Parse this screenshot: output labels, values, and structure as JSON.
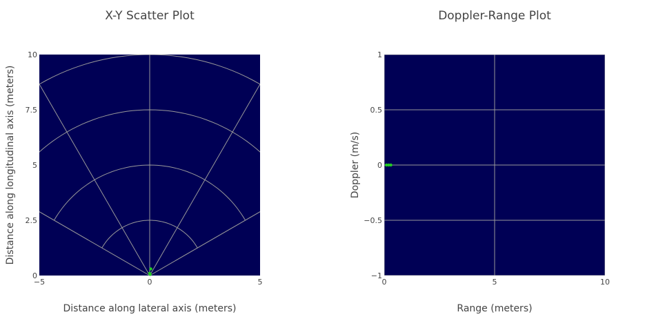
{
  "chart_data": [
    {
      "type": "scatter",
      "title": "X-Y Scatter Plot",
      "xlabel": "Distance along lateral axis (meters)",
      "ylabel": "Distance along longitudinal axis (meters)",
      "xlim": [
        -5,
        5
      ],
      "ylim": [
        0,
        10
      ],
      "xticks": [
        -5,
        0,
        5
      ],
      "xtick_labels": [
        "−5",
        "0",
        "5"
      ],
      "yticks": [
        0,
        2.5,
        5,
        7.5,
        10
      ],
      "ytick_labels": [
        "0",
        "2.5",
        "5",
        "7.5",
        "10"
      ],
      "background": "#000055",
      "grid": "polar",
      "grid_color": "#999999",
      "range_rings": [
        2.5,
        5,
        7.5,
        10
      ],
      "azimuth_lines_deg": [
        -60,
        -30,
        0,
        30,
        60
      ],
      "marker_color": "#22cc22",
      "series": [
        {
          "x": [
            0.05,
            0.0,
            0.02
          ],
          "y": [
            0.3,
            0.1,
            0.05
          ]
        }
      ]
    },
    {
      "type": "scatter",
      "title": "Doppler-Range Plot",
      "xlabel": "Range (meters)",
      "ylabel": "Doppler (m/s)",
      "xlim": [
        0,
        10
      ],
      "ylim": [
        -1,
        1
      ],
      "xticks": [
        0,
        5,
        10
      ],
      "xtick_labels": [
        "0",
        "5",
        "10"
      ],
      "yticks": [
        -1,
        -0.5,
        0,
        0.5,
        1
      ],
      "ytick_labels": [
        "−1",
        "−0.5",
        "0",
        "0.5",
        "1"
      ],
      "background": "#000055",
      "grid": true,
      "grid_color": "#999999",
      "marker_color": "#22cc22",
      "series": [
        {
          "x": [
            0.1,
            0.2,
            0.3
          ],
          "y": [
            0,
            0,
            0
          ]
        }
      ]
    }
  ]
}
